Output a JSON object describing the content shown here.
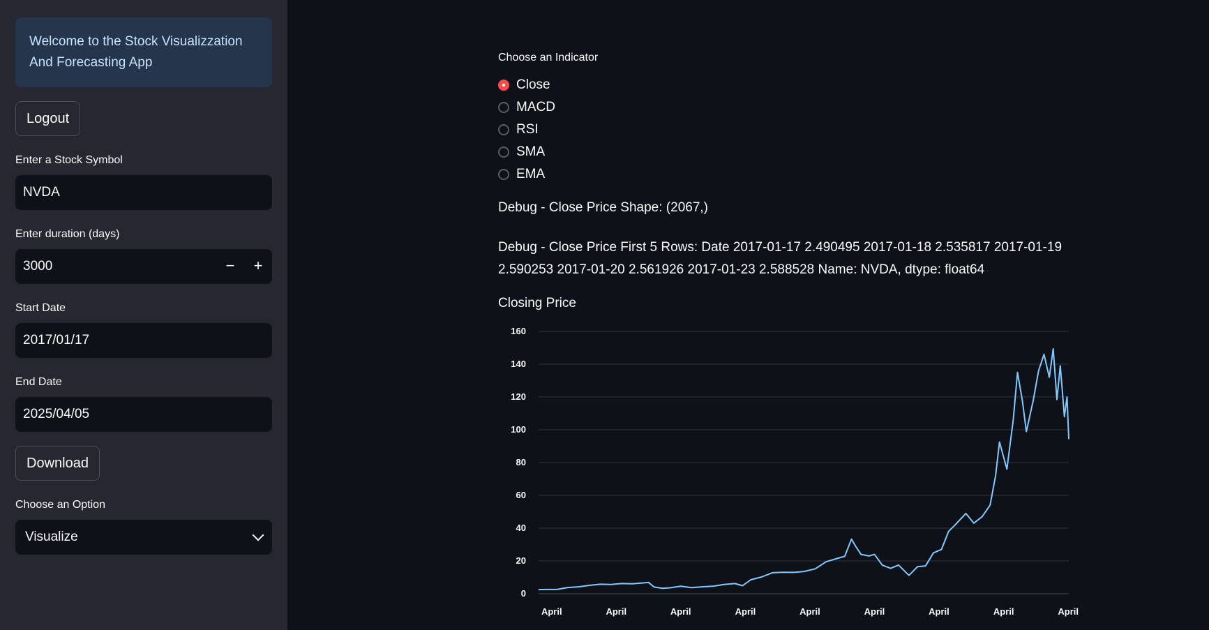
{
  "sidebar": {
    "welcome": "Welcome to the Stock Visualizzation And Forecasting App",
    "logout_label": "Logout",
    "symbol_label": "Enter a Stock Symbol",
    "symbol_value": "NVDA",
    "duration_label": "Enter duration (days)",
    "duration_value": "3000",
    "minus_label": "−",
    "plus_label": "+",
    "start_label": "Start Date",
    "start_value": "2017/01/17",
    "end_label": "End Date",
    "end_value": "2025/04/05",
    "download_label": "Download",
    "option_label": "Choose an Option",
    "option_value": "Visualize"
  },
  "main": {
    "indicator_label": "Choose an Indicator",
    "indicators": [
      "Close",
      "MACD",
      "RSI",
      "SMA",
      "EMA"
    ],
    "selected_indicator": "Close",
    "debug_shape": "Debug - Close Price Shape: (2067,)",
    "debug_rows": "Debug - Close Price First 5 Rows: Date 2017-01-17 2.490495 2017-01-18 2.535817 2017-01-19 2.590253 2017-01-20 2.561926 2017-01-23 2.588528 Name: NVDA, dtype: float64",
    "chart_title": "Closing Price"
  },
  "colors": {
    "accent": "#ff4b4b",
    "line": "#83c9ff",
    "sidebar_bg": "#262730",
    "main_bg": "#0e1117",
    "info_bg": "#25364c"
  },
  "chart_data": {
    "type": "line",
    "title": "Closing Price",
    "xlabel": "",
    "ylabel": "",
    "ylim": [
      0,
      160
    ],
    "yticks": [
      0,
      20,
      40,
      60,
      80,
      100,
      120,
      140,
      160
    ],
    "xtick_labels": [
      "April",
      "April",
      "April",
      "April",
      "April",
      "April",
      "April",
      "April",
      "April"
    ],
    "xtick_dates": [
      "2017-04-01",
      "2018-04-01",
      "2019-04-01",
      "2020-04-01",
      "2021-04-01",
      "2022-04-01",
      "2023-04-01",
      "2024-04-01",
      "2025-04-01"
    ],
    "grid": true,
    "series": [
      {
        "x": [
          "2017-01-17",
          "2017-03-01",
          "2017-05-01",
          "2017-07-01",
          "2017-09-01",
          "2017-11-01",
          "2018-01-01",
          "2018-03-01",
          "2018-05-01",
          "2018-07-01",
          "2018-09-01",
          "2018-10-01",
          "2018-11-01",
          "2018-12-20",
          "2019-02-01",
          "2019-04-01",
          "2019-06-01",
          "2019-08-01",
          "2019-10-01",
          "2019-12-01",
          "2020-02-01",
          "2020-03-16",
          "2020-05-01",
          "2020-07-01",
          "2020-09-01",
          "2020-11-01",
          "2021-01-01",
          "2021-03-01",
          "2021-05-01",
          "2021-07-01",
          "2021-09-01",
          "2021-10-15",
          "2021-11-22",
          "2021-12-15",
          "2022-01-15",
          "2022-03-01",
          "2022-04-01",
          "2022-05-15",
          "2022-07-01",
          "2022-08-15",
          "2022-10-13",
          "2022-12-01",
          "2023-01-15",
          "2023-03-01",
          "2023-04-15",
          "2023-05-25",
          "2023-07-01",
          "2023-08-31",
          "2023-10-15",
          "2023-12-01",
          "2024-01-15",
          "2024-02-15",
          "2024-03-08",
          "2024-04-19",
          "2024-05-25",
          "2024-06-18",
          "2024-07-15",
          "2024-08-07",
          "2024-09-15",
          "2024-10-15",
          "2024-11-15",
          "2024-12-15",
          "2025-01-06",
          "2025-01-27",
          "2025-02-15",
          "2025-03-10",
          "2025-03-25",
          "2025-04-04"
        ],
        "y": [
          2.49,
          2.6,
          2.6,
          3.8,
          4.2,
          5.1,
          5.8,
          5.6,
          6.2,
          6.1,
          6.6,
          6.9,
          4.1,
          3.3,
          3.6,
          4.6,
          3.7,
          4.2,
          4.6,
          5.6,
          6.2,
          4.9,
          8.5,
          10.2,
          12.8,
          13.1,
          13.0,
          13.6,
          15.2,
          19.5,
          21.5,
          22.8,
          33.3,
          29.0,
          24.0,
          23.0,
          24.0,
          17.5,
          15.5,
          17.5,
          11.2,
          16.5,
          17.0,
          25.0,
          27.0,
          38.0,
          42.0,
          49.0,
          43.0,
          47.0,
          54.0,
          72.0,
          92.5,
          76.0,
          106.0,
          135.0,
          118.0,
          98.9,
          118.0,
          136.0,
          146.0,
          132.0,
          149.4,
          118.4,
          139.0,
          108.0,
          120.0,
          94.3
        ]
      }
    ]
  }
}
